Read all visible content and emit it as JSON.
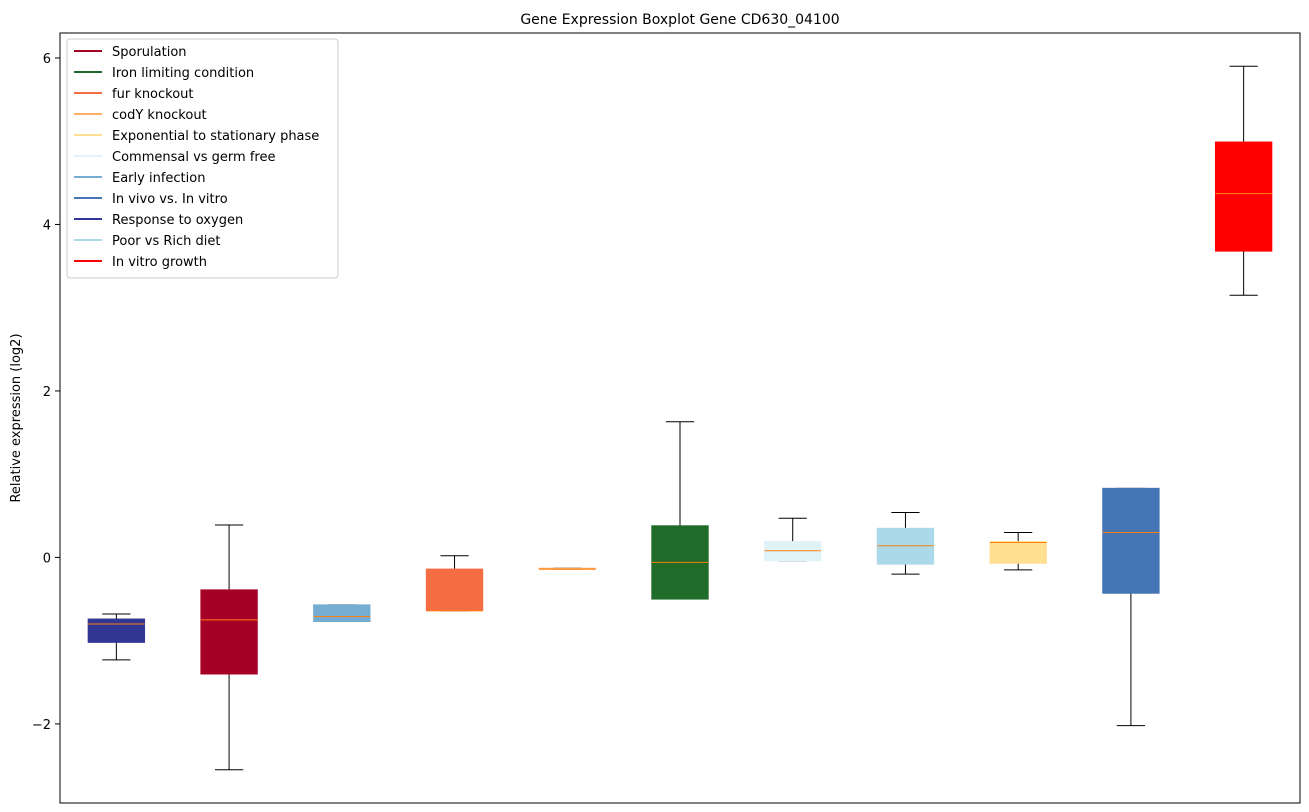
{
  "chart_data": {
    "type": "boxplot",
    "title": "Gene Expression Boxplot Gene CD630_04100",
    "xlabel": "",
    "ylabel": "Relative expression (log2)",
    "ylim": [
      -2.95,
      6.3
    ],
    "yticks": [
      -2,
      0,
      2,
      4,
      6
    ],
    "ytick_labels": [
      "−2",
      "0",
      "2",
      "4",
      "6"
    ],
    "grid": false,
    "legend_position": "top-left",
    "median_color": "#ff7f0e",
    "legend": [
      {
        "label": "Sporulation",
        "color": "#a50026"
      },
      {
        "label": "Iron limiting condition",
        "color": "#1f6b2a"
      },
      {
        "label": "fur knockout",
        "color": "#f46d43"
      },
      {
        "label": "codY knockout",
        "color": "#fdae61"
      },
      {
        "label": "Exponential to stationary phase",
        "color": "#fee090"
      },
      {
        "label": "Commensal vs germ free",
        "color": "#e0f3f8"
      },
      {
        "label": "Early infection",
        "color": "#74add1"
      },
      {
        "label": "In vivo vs. In vitro",
        "color": "#4575b4"
      },
      {
        "label": "Response to oxygen",
        "color": "#313695"
      },
      {
        "label": "Poor vs Rich diet",
        "color": "#abd9e9"
      },
      {
        "label": "In vitro growth",
        "color": "#ff0000"
      }
    ],
    "boxes": [
      {
        "condition": "Response to oxygen",
        "color": "#313695",
        "whisker_low": -1.23,
        "q1": -1.02,
        "median": -0.8,
        "q3": -0.74,
        "whisker_high": -0.68
      },
      {
        "condition": "Sporulation",
        "color": "#a50026",
        "whisker_low": -2.55,
        "q1": -1.4,
        "median": -0.75,
        "q3": -0.39,
        "whisker_high": 0.39
      },
      {
        "condition": "Early infection",
        "color": "#74add1",
        "whisker_low": -0.77,
        "q1": -0.77,
        "median": -0.71,
        "q3": -0.57,
        "whisker_high": -0.57
      },
      {
        "condition": "fur knockout",
        "color": "#f46d43",
        "whisker_low": -0.64,
        "q1": -0.64,
        "median": -0.64,
        "q3": -0.14,
        "whisker_high": 0.02
      },
      {
        "condition": "codY knockout",
        "color": "#fdae61",
        "whisker_low": -0.14,
        "q1": -0.14,
        "median": -0.14,
        "q3": -0.13,
        "whisker_high": -0.13
      },
      {
        "condition": "Iron limiting condition",
        "color": "#1f6b2a",
        "whisker_low": -0.5,
        "q1": -0.5,
        "median": -0.06,
        "q3": 0.38,
        "whisker_high": 1.63
      },
      {
        "condition": "Commensal vs germ free",
        "color": "#e0f3f8",
        "whisker_low": -0.04,
        "q1": -0.04,
        "median": 0.08,
        "q3": 0.19,
        "whisker_high": 0.47
      },
      {
        "condition": "Poor vs Rich diet",
        "color": "#abd9e9",
        "whisker_low": -0.2,
        "q1": -0.08,
        "median": 0.14,
        "q3": 0.35,
        "whisker_high": 0.54
      },
      {
        "condition": "Exponential to stationary phase",
        "color": "#fee090",
        "whisker_low": -0.15,
        "q1": -0.07,
        "median": 0.18,
        "q3": 0.19,
        "whisker_high": 0.3
      },
      {
        "condition": "In vivo vs. In vitro",
        "color": "#4575b4",
        "whisker_low": -2.02,
        "q1": -0.43,
        "median": 0.3,
        "q3": 0.83,
        "whisker_high": 0.83
      },
      {
        "condition": "In vitro growth",
        "color": "#ff0000",
        "whisker_low": 3.15,
        "q1": 3.68,
        "median": 4.37,
        "q3": 4.99,
        "whisker_high": 5.9
      }
    ]
  }
}
